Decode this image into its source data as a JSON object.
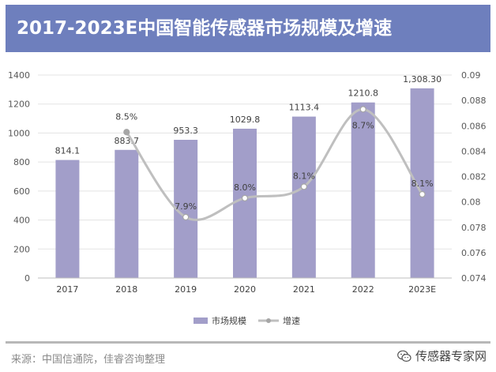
{
  "header": {
    "title": "2017-2023E中国智能传感器市场规模及增速"
  },
  "chart_data": {
    "type": "bar",
    "title": "2017-2023E中国智能传感器市场规模及增速",
    "categories": [
      "2017",
      "2018",
      "2019",
      "2020",
      "2021",
      "2022",
      "2023E"
    ],
    "series": [
      {
        "name": "市场规模",
        "type": "bar",
        "axis": "left",
        "values": [
          814.1,
          883.7,
          953.3,
          1029.8,
          1113.4,
          1210.8,
          1308.3
        ],
        "labels": [
          "814.1",
          "883.7",
          "953.3",
          "1029.8",
          "1113.4",
          "1210.8",
          "1,308.30"
        ],
        "color": "#a29ec9"
      },
      {
        "name": "增速",
        "type": "line",
        "axis": "right",
        "x": [
          "2018",
          "2019",
          "2020",
          "2021",
          "2022",
          "2023E"
        ],
        "values": [
          0.0855,
          0.0788,
          0.0803,
          0.0812,
          0.0873,
          0.0806
        ],
        "labels": [
          "8.5%",
          "7.9%",
          "8.0%",
          "8.1%",
          "8.7%",
          "8.1%"
        ],
        "color": "#bfbfbf"
      }
    ],
    "y_left": {
      "min": 0,
      "max": 1400,
      "ticks": [
        "0",
        "200",
        "400",
        "600",
        "800",
        "1000",
        "1200",
        "1400"
      ]
    },
    "y_right": {
      "min": 0.074,
      "max": 0.09,
      "ticks": [
        "0.074",
        "0.076",
        "0.078",
        "0.08",
        "0.082",
        "0.084",
        "0.086",
        "0.088",
        "0.09"
      ]
    },
    "grid": true,
    "legend": {
      "position": "bottom",
      "items": [
        "市场规模",
        "增速"
      ]
    }
  },
  "footer": {
    "source": "来源：中国信通院，佳睿咨询整理",
    "watermark": "传感器专家网",
    "watermark_icon": "wechat-icon"
  }
}
